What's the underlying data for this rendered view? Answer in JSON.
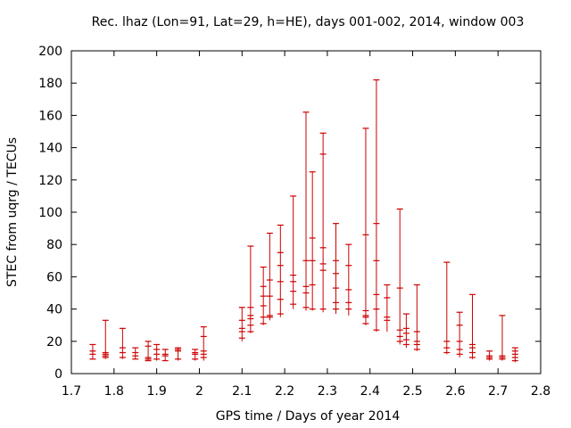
{
  "chart_data": {
    "type": "scatter",
    "style": "vertical error bars with horizontal tick marks at each point",
    "title": "Rec. lhaz (Lon=91, Lat=29, h=HE), days 001-002, 2014, window 003",
    "xlabel": "GPS time / Days of year 2014",
    "ylabel": "STEC from uqrg / TECUs",
    "xlim": [
      1.7,
      2.8
    ],
    "ylim": [
      0,
      200
    ],
    "xticks": [
      "1.7",
      "1.8",
      "1.9",
      "2",
      "2.1",
      "2.2",
      "2.3",
      "2.4",
      "2.5",
      "2.6",
      "2.7",
      "2.8"
    ],
    "yticks": [
      "0",
      "20",
      "40",
      "60",
      "80",
      "100",
      "120",
      "140",
      "160",
      "180",
      "200"
    ],
    "grid": false,
    "series_color": "#cc0000",
    "error_bars": [
      {
        "x": 1.75,
        "low": 9,
        "high": 18,
        "marks": [
          9,
          12,
          14,
          18
        ]
      },
      {
        "x": 1.78,
        "low": 9,
        "high": 33,
        "marks": [
          10,
          11,
          12,
          13,
          33
        ]
      },
      {
        "x": 1.82,
        "low": 9,
        "high": 28,
        "marks": [
          10,
          13,
          16,
          28
        ]
      },
      {
        "x": 1.85,
        "low": 9,
        "high": 16,
        "marks": [
          9,
          11,
          13,
          16
        ]
      },
      {
        "x": 1.88,
        "low": 8,
        "high": 20,
        "marks": [
          8,
          9,
          10,
          17,
          20
        ]
      },
      {
        "x": 1.9,
        "low": 8,
        "high": 18,
        "marks": [
          9,
          12,
          15,
          18
        ]
      },
      {
        "x": 1.92,
        "low": 8,
        "high": 15,
        "marks": [
          8,
          11,
          12,
          15
        ]
      },
      {
        "x": 1.95,
        "low": 8,
        "high": 16,
        "marks": [
          9,
          14,
          15,
          16
        ]
      },
      {
        "x": 1.99,
        "low": 8,
        "high": 15,
        "marks": [
          9,
          12,
          13,
          15
        ]
      },
      {
        "x": 2.01,
        "low": 8,
        "high": 29,
        "marks": [
          10,
          12,
          14,
          23,
          29
        ]
      },
      {
        "x": 2.1,
        "low": 20,
        "high": 41,
        "marks": [
          22,
          26,
          28,
          33,
          41
        ]
      },
      {
        "x": 2.12,
        "low": 25,
        "high": 79,
        "marks": [
          26,
          30,
          34,
          36,
          41,
          79
        ]
      },
      {
        "x": 2.15,
        "low": 30,
        "high": 66,
        "marks": [
          31,
          35,
          42,
          48,
          54,
          66
        ]
      },
      {
        "x": 2.165,
        "low": 33,
        "high": 87,
        "marks": [
          35,
          36,
          48,
          58,
          87
        ]
      },
      {
        "x": 2.19,
        "low": 35,
        "high": 92,
        "marks": [
          37,
          46,
          57,
          67,
          75,
          92
        ]
      },
      {
        "x": 2.22,
        "low": 40,
        "high": 110,
        "marks": [
          43,
          51,
          57,
          61,
          110
        ]
      },
      {
        "x": 2.25,
        "low": 39,
        "high": 162,
        "marks": [
          41,
          50,
          54,
          70,
          162
        ]
      },
      {
        "x": 2.265,
        "low": 39,
        "high": 125,
        "marks": [
          40,
          55,
          70,
          84,
          125
        ]
      },
      {
        "x": 2.29,
        "low": 38,
        "high": 149,
        "marks": [
          40,
          64,
          68,
          78,
          136,
          149
        ]
      },
      {
        "x": 2.32,
        "low": 37,
        "high": 93,
        "marks": [
          40,
          44,
          53,
          62,
          70,
          93
        ]
      },
      {
        "x": 2.35,
        "low": 36,
        "high": 80,
        "marks": [
          40,
          44,
          52,
          67,
          80
        ]
      },
      {
        "x": 2.39,
        "low": 30,
        "high": 152,
        "marks": [
          31,
          35,
          36,
          39,
          86,
          152
        ]
      },
      {
        "x": 2.415,
        "low": 26,
        "high": 182,
        "marks": [
          27,
          40,
          49,
          70,
          93,
          182
        ]
      },
      {
        "x": 2.44,
        "low": 26,
        "high": 55,
        "marks": [
          33,
          35,
          47,
          55
        ]
      },
      {
        "x": 2.47,
        "low": 18,
        "high": 102,
        "marks": [
          20,
          23,
          27,
          53,
          102
        ]
      },
      {
        "x": 2.485,
        "low": 16,
        "high": 37,
        "marks": [
          18,
          21,
          25,
          28,
          37
        ]
      },
      {
        "x": 2.51,
        "low": 14,
        "high": 55,
        "marks": [
          15,
          18,
          20,
          26,
          55
        ]
      },
      {
        "x": 2.58,
        "low": 12,
        "high": 69,
        "marks": [
          13,
          16,
          20,
          69
        ]
      },
      {
        "x": 2.61,
        "low": 10,
        "high": 38,
        "marks": [
          12,
          15,
          20,
          30,
          38
        ]
      },
      {
        "x": 2.64,
        "low": 9,
        "high": 49,
        "marks": [
          10,
          13,
          16,
          18,
          49
        ]
      },
      {
        "x": 2.68,
        "low": 8,
        "high": 14,
        "marks": [
          9,
          10,
          11,
          14
        ]
      },
      {
        "x": 2.71,
        "low": 8,
        "high": 36,
        "marks": [
          9,
          10,
          11,
          36
        ]
      },
      {
        "x": 2.74,
        "low": 7,
        "high": 16,
        "marks": [
          8,
          10,
          12,
          14,
          16
        ]
      }
    ]
  }
}
